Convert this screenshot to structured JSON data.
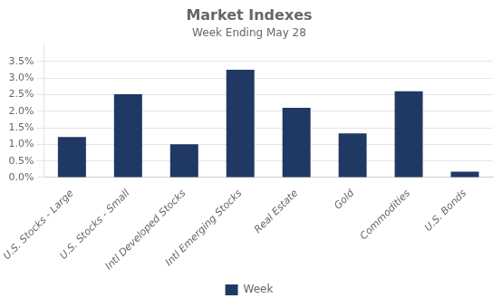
{
  "chart_data": {
    "type": "bar",
    "title": "Market Indexes",
    "subtitle": "Week Ending May 28",
    "categories": [
      "U.S. Stocks - Large",
      "U.S. Stocks - Small",
      "Intl Developed Stocks",
      "Intl Emerging Stocks",
      "Real Estate",
      "Gold",
      "Commodities",
      "U.S. Bonds"
    ],
    "series": [
      {
        "name": "Week",
        "color": "#1F3864",
        "values": [
          0.0122,
          0.0251,
          0.01,
          0.0325,
          0.021,
          0.0133,
          0.026,
          0.0018
        ]
      }
    ],
    "ylim": [
      0,
      0.04
    ],
    "yticks": [
      {
        "value": 0.0,
        "label": "0.0%"
      },
      {
        "value": 0.005,
        "label": "0.5%"
      },
      {
        "value": 0.01,
        "label": "1.0%"
      },
      {
        "value": 0.015,
        "label": "1.5%"
      },
      {
        "value": 0.02,
        "label": "2.0%"
      },
      {
        "value": 0.025,
        "label": "2.5%"
      },
      {
        "value": 0.03,
        "label": "3.0%"
      },
      {
        "value": 0.035,
        "label": "3.5%"
      }
    ],
    "grid": true,
    "legend": "bottom"
  }
}
